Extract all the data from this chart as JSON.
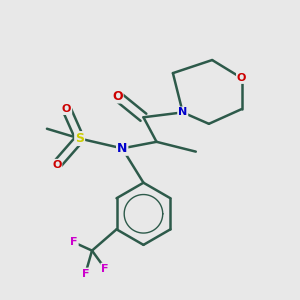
{
  "bg_color": "#e8e8e8",
  "line_color": "#2d5a4a",
  "line_width": 1.8,
  "atom_colors": {
    "N": "#0000cc",
    "O": "#cc0000",
    "S": "#cccc00",
    "F": "#cc00cc",
    "C": "#2d5a4a"
  },
  "figsize": [
    3.0,
    3.0
  ],
  "dpi": 100
}
